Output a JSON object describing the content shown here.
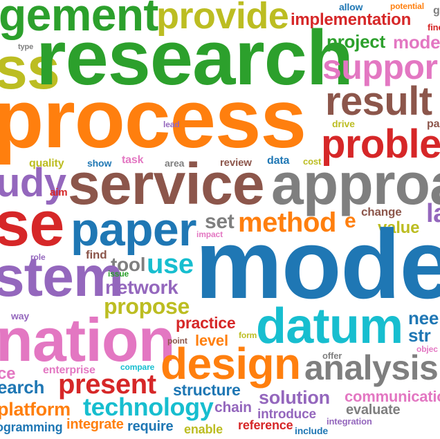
{
  "colors": {
    "green": "#2ca02c",
    "orange": "#ff7f0e",
    "blue": "#1f77b4",
    "red": "#d62728",
    "purple": "#9467bd",
    "brown": "#8c564b",
    "pink": "#e377c2",
    "gray": "#7f7f7f",
    "olive": "#bcbd22",
    "cyan": "#17becf"
  },
  "words": {
    "research": "research",
    "process": "process",
    "model": "model",
    "service": "service",
    "approach": "approa",
    "gement": "gement",
    "provide": "provide",
    "ss": "ss",
    "support": "suppor",
    "result": "result",
    "problem": "proble",
    "implementation": "implementation",
    "project": "project",
    "model_small": "model",
    "allow": "allow",
    "potential": "potential",
    "type": "type",
    "lead": "lead",
    "drive": "drive",
    "pa": "pa",
    "quality": "quality",
    "show": "show",
    "task": "task",
    "area": "area",
    "review": "review",
    "data": "data",
    "cost": "cost",
    "udy": "udy",
    "aim": "aim",
    "se": "se",
    "paper": "paper",
    "set": "set",
    "method": "method",
    "e": "e",
    "change": "change",
    "la": "la",
    "value": "value",
    "impact": "impact",
    "find": "find",
    "role": "role",
    "tool": "tool",
    "use": "use",
    "stem": "stem",
    "issue": "issue",
    "network": "network",
    "propose": "propose",
    "way": "way",
    "nation": "nation",
    "practice": "practice",
    "datum": "datum",
    "nee": "nee",
    "str": "str",
    "level": "level",
    "form": "form",
    "point": "point",
    "design": "design",
    "offer": "offer",
    "analysis": "analysis",
    "objec": "objec",
    "enterprise": "enterprise",
    "compare": "compare",
    "ce": "ce",
    "earch": "earch",
    "present": "present",
    "structure": "structure",
    "solution": "solution",
    "communication": "communicatio",
    "platform": "platform",
    "technology": "technology",
    "chain": "chain",
    "evaluate": "evaluate",
    "introduce": "introduce",
    "programming": "ogramming",
    "integrate": "integrate",
    "require": "require",
    "enable": "enable",
    "reference": "reference",
    "include": "include",
    "integration": "integration",
    "g": "g",
    "fine": "fine"
  }
}
